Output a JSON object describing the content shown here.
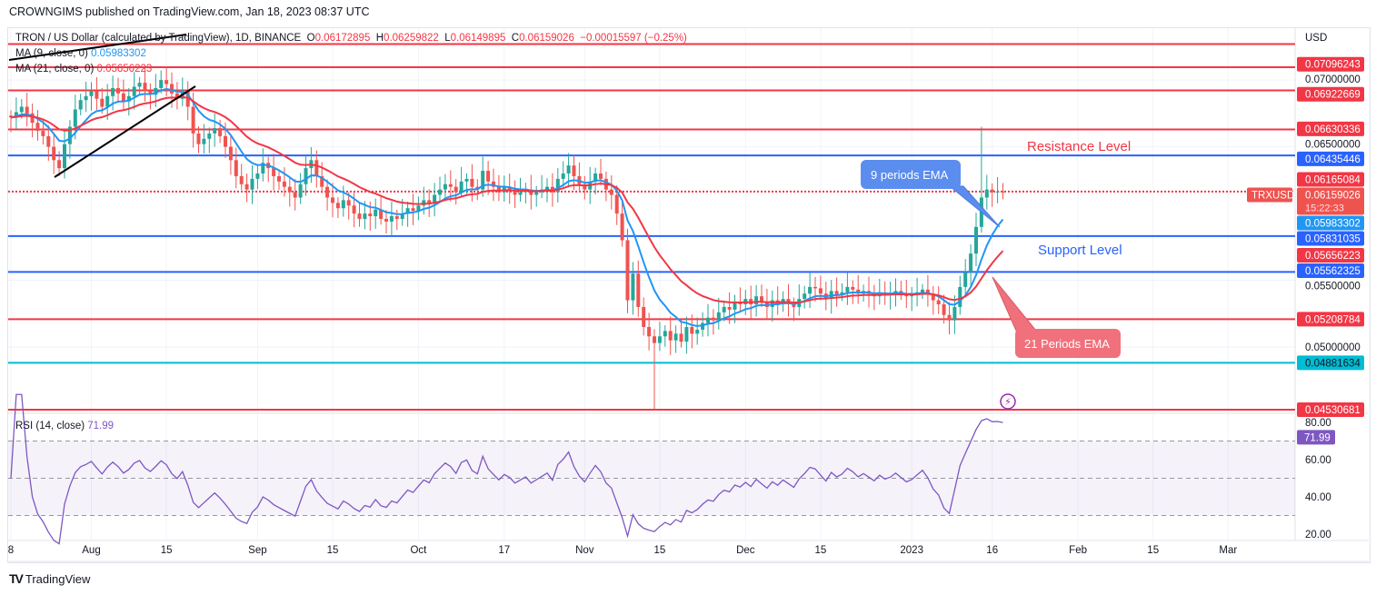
{
  "published": "CROWNGIMS published on TradingView.com, Jan 18, 2023 08:37 UTC",
  "legend": {
    "symbol": "TRON / US Dollar (calculated by TradingView), 1D, BINANCE",
    "o_label": "O",
    "o": "0.06172895",
    "h_label": "H",
    "h": "0.06259822",
    "l_label": "L",
    "l": "0.06149895",
    "c_label": "C",
    "c": "0.06159026",
    "change": "−0.00015597 (−0.25%)",
    "ma9": "MA (9, close, 0)",
    "ma9_value": "0.05983302",
    "ma21": "MA (21, close, 0)",
    "ma21_value": "0.05656223",
    "rsi": "RSI (14, close)",
    "rsi_value": "71.99"
  },
  "logo": "TradingView",
  "chart_data": {
    "type": "candlestick",
    "currency": "USD",
    "symbol_tag": "TRXUSD",
    "countdown": "15:22:33",
    "ylim": [
      0.0445,
      0.0738
    ],
    "x_ticks": [
      {
        "day": 0,
        "label": "8"
      },
      {
        "day": 15,
        "label": "Aug"
      },
      {
        "day": 29,
        "label": "15"
      },
      {
        "day": 46,
        "label": "Sep"
      },
      {
        "day": 60,
        "label": "15"
      },
      {
        "day": 76,
        "label": "Oct"
      },
      {
        "day": 92,
        "label": "17"
      },
      {
        "day": 107,
        "label": "Nov"
      },
      {
        "day": 121,
        "label": "15"
      },
      {
        "day": 137,
        "label": "Dec"
      },
      {
        "day": 151,
        "label": "15"
      },
      {
        "day": 168,
        "label": "2023"
      },
      {
        "day": 183,
        "label": "16"
      },
      {
        "day": 199,
        "label": "Feb"
      },
      {
        "day": 213,
        "label": "15"
      },
      {
        "day": 227,
        "label": "Mar"
      }
    ],
    "y_ticks": [
      {
        "price": 0.07,
        "label": "0.07000000"
      },
      {
        "price": 0.065,
        "label": "0.06500000"
      },
      {
        "price": 0.055,
        "label": "0.05500000"
      },
      {
        "price": 0.05,
        "label": "0.05000000"
      }
    ],
    "closes": [
      0.0672,
      0.0676,
      0.068,
      0.0675,
      0.0668,
      0.0662,
      0.0658,
      0.065,
      0.064,
      0.0634,
      0.0652,
      0.0665,
      0.0678,
      0.0685,
      0.0688,
      0.0692,
      0.0686,
      0.068,
      0.0688,
      0.0694,
      0.069,
      0.0684,
      0.0688,
      0.0695,
      0.0698,
      0.0692,
      0.0689,
      0.0694,
      0.07,
      0.0697,
      0.069,
      0.0686,
      0.0692,
      0.068,
      0.066,
      0.0652,
      0.0656,
      0.066,
      0.0664,
      0.0658,
      0.065,
      0.064,
      0.0628,
      0.0622,
      0.0618,
      0.0626,
      0.063,
      0.0638,
      0.0634,
      0.0628,
      0.0624,
      0.062,
      0.0616,
      0.0612,
      0.0622,
      0.0634,
      0.064,
      0.0628,
      0.062,
      0.0612,
      0.0608,
      0.0604,
      0.061,
      0.0606,
      0.06,
      0.0596,
      0.06,
      0.0598,
      0.0603,
      0.0596,
      0.0594,
      0.0598,
      0.0596,
      0.06,
      0.0604,
      0.0602,
      0.0606,
      0.061,
      0.0608,
      0.0614,
      0.0618,
      0.0622,
      0.062,
      0.0616,
      0.0624,
      0.0626,
      0.062,
      0.0618,
      0.0632,
      0.0624,
      0.062,
      0.0616,
      0.062,
      0.0618,
      0.0614,
      0.0616,
      0.0618,
      0.0614,
      0.0616,
      0.0618,
      0.062,
      0.0616,
      0.0626,
      0.063,
      0.0636,
      0.0628,
      0.0622,
      0.0618,
      0.0624,
      0.063,
      0.0626,
      0.0618,
      0.0614,
      0.06,
      0.058,
      0.0535,
      0.0555,
      0.053,
      0.0515,
      0.0508,
      0.0503,
      0.0508,
      0.0512,
      0.0505,
      0.051,
      0.0504,
      0.0515,
      0.051,
      0.0513,
      0.0518,
      0.0522,
      0.052,
      0.0526,
      0.053,
      0.0528,
      0.0534,
      0.0532,
      0.0536,
      0.0532,
      0.0538,
      0.0534,
      0.053,
      0.0535,
      0.0532,
      0.0536,
      0.0533,
      0.053,
      0.0536,
      0.054,
      0.0545,
      0.0544,
      0.054,
      0.0536,
      0.0542,
      0.0539,
      0.0541,
      0.0545,
      0.0543,
      0.054,
      0.0542,
      0.054,
      0.0538,
      0.0541,
      0.0539,
      0.054,
      0.0542,
      0.054,
      0.0538,
      0.0539,
      0.0541,
      0.0543,
      0.054,
      0.0535,
      0.0532,
      0.0524,
      0.052,
      0.053,
      0.0545,
      0.0556,
      0.057,
      0.059,
      0.0612,
      0.0618,
      0.0616,
      0.06165,
      0.06159
    ],
    "extreme_wicks": [
      {
        "day": 120,
        "low": 0.0453
      },
      {
        "day": 181,
        "high": 0.0665
      }
    ],
    "levels": [
      {
        "price": 0.0727,
        "label": null,
        "color": "#f23645",
        "dotted": false
      },
      {
        "price": 0.07096243,
        "label": "0.07096243",
        "color": "#f23645",
        "dotted": false
      },
      {
        "price": 0.06922669,
        "label": "0.06922669",
        "color": "#f23645",
        "dotted": false
      },
      {
        "price": 0.06630336,
        "label": "0.06630336",
        "color": "#f23645",
        "dotted": false
      },
      {
        "price": 0.06435446,
        "label": "0.06435446",
        "color": "#2962ff",
        "dotted": false
      },
      {
        "price": 0.06165084,
        "label": "0.06165084",
        "color": "#f23645",
        "dotted": true
      },
      {
        "price": 0.05831035,
        "label": "0.05831035",
        "color": "#2962ff",
        "dotted": false
      },
      {
        "price": 0.05562325,
        "label": "0.05562325",
        "color": "#2962ff",
        "dotted": false
      },
      {
        "price": 0.05208784,
        "label": "0.05208784",
        "color": "#f23645",
        "dotted": false
      },
      {
        "price": 0.04881634,
        "label": "0.04881634",
        "color": "#00bcd4",
        "dotted": false
      },
      {
        "price": 0.04530681,
        "label": "0.04530681",
        "color": "#f23645",
        "dotted": false
      }
    ],
    "price_tags": [
      {
        "price": 0.06159026,
        "label": "0.06159026",
        "color": "#ef5350"
      },
      {
        "price": 0.05983302,
        "label": "0.05983302",
        "color": "#2196f3"
      },
      {
        "price": 0.05656223,
        "label": "0.05656223",
        "color": "#f23645"
      }
    ],
    "ema_periods": [
      9,
      21
    ],
    "colors": {
      "up": "#26a69a",
      "down": "#ef5350",
      "ema9": "#2196f3",
      "ema21": "#f23645",
      "rsi": "#7e57c2"
    },
    "annotations": {
      "resistance": "Resistance Level",
      "support": "Support Level",
      "ema9": "9 periods EMA",
      "ema21": "21 Periods EMA"
    },
    "rsi": {
      "value": 71.99,
      "label": "71.99",
      "ticks": [
        "80.00",
        "60.00",
        "40.00",
        "20.00"
      ],
      "band": [
        30,
        70
      ]
    }
  }
}
